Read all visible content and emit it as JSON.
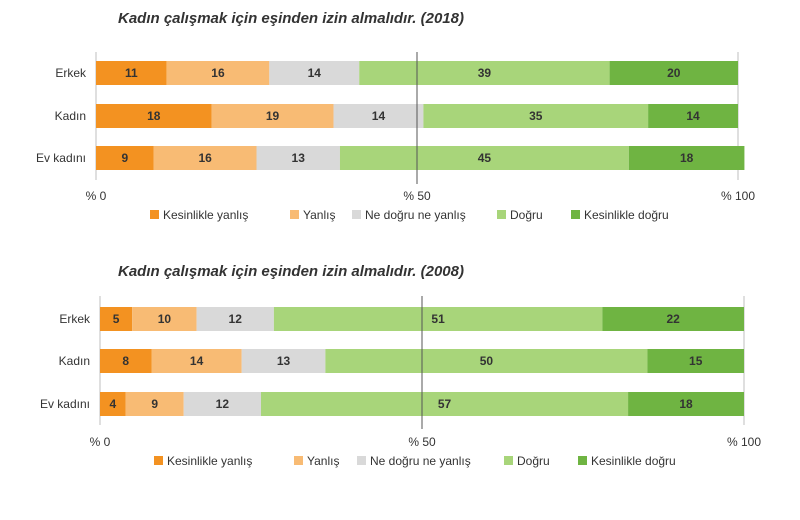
{
  "chart_data": [
    {
      "type": "bar",
      "orientation": "horizontal",
      "stacked": true,
      "title": "Kadın çalışmak için eşinden izin almalıdır. (2018)",
      "categories": [
        "Erkek",
        "Kadın",
        "Ev kadını"
      ],
      "series": [
        {
          "name": "Kesinlikle yanlış",
          "values": [
            11,
            18,
            9
          ]
        },
        {
          "name": "Yanlış",
          "values": [
            16,
            19,
            16
          ]
        },
        {
          "name": "Ne doğru ne yanlış",
          "values": [
            14,
            14,
            13
          ]
        },
        {
          "name": "Doğru",
          "values": [
            39,
            35,
            45
          ]
        },
        {
          "name": "Kesinlikle doğru",
          "values": [
            20,
            14,
            18
          ]
        }
      ],
      "xticks": [
        "% 0",
        "% 50",
        "% 100"
      ],
      "xlim": [
        0,
        100
      ],
      "legend_position": "bottom"
    },
    {
      "type": "bar",
      "orientation": "horizontal",
      "stacked": true,
      "title": "Kadın çalışmak için eşinden izin almalıdır. (2008)",
      "categories": [
        "Erkek",
        "Kadın",
        "Ev kadını"
      ],
      "series": [
        {
          "name": "Kesinlikle yanlış",
          "values": [
            5,
            8,
            4
          ]
        },
        {
          "name": "Yanlış",
          "values": [
            10,
            14,
            9
          ]
        },
        {
          "name": "Ne doğru ne yanlış",
          "values": [
            12,
            13,
            12
          ]
        },
        {
          "name": "Doğru",
          "values": [
            51,
            50,
            57
          ]
        },
        {
          "name": "Kesinlikle doğru",
          "values": [
            22,
            15,
            18
          ]
        }
      ],
      "xticks": [
        "% 0",
        "% 50",
        "% 100"
      ],
      "xlim": [
        0,
        100
      ],
      "legend_position": "bottom"
    }
  ],
  "colors": [
    "#f39221",
    "#f8bb74",
    "#d9d9d9",
    "#a8d57a",
    "#6fb442"
  ]
}
